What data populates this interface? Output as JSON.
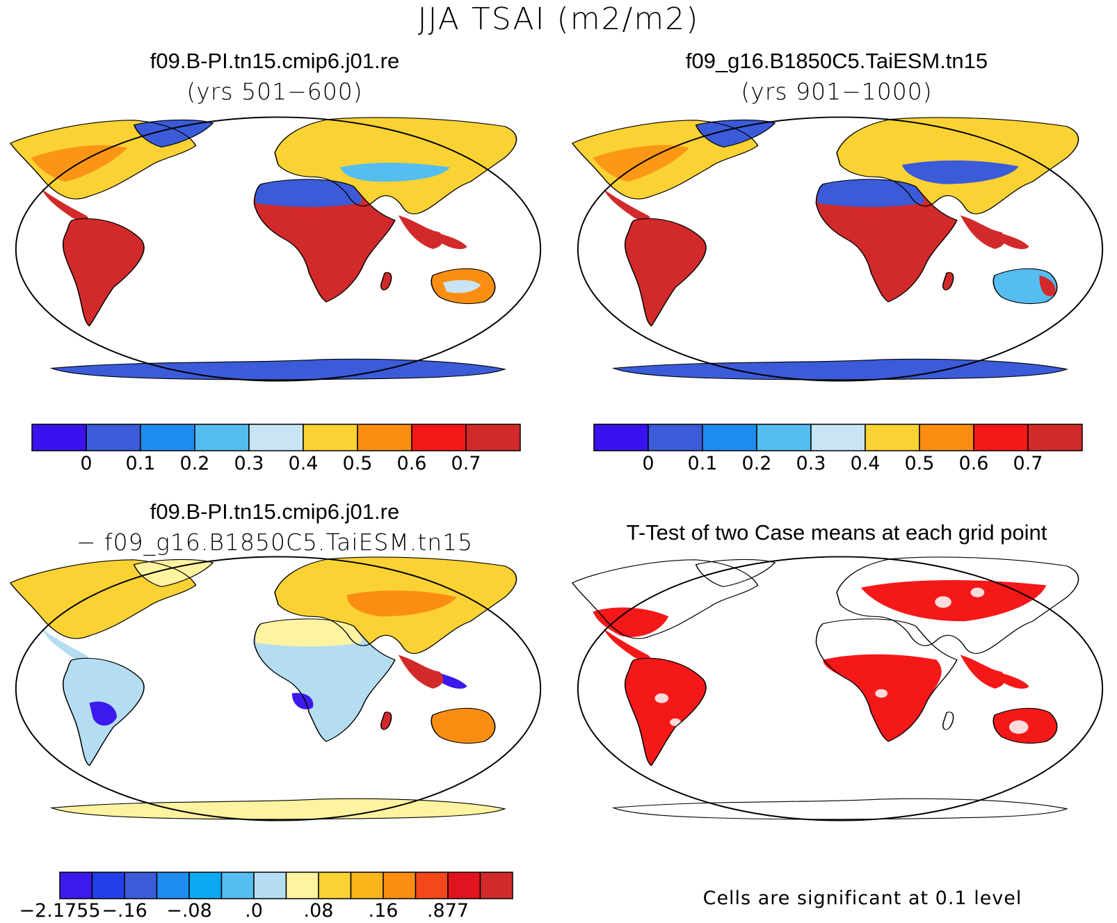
{
  "title": "JJA TSAI (m2/m2)",
  "panels": [
    {
      "title": "f09.B-PI.tn15.cmip6.j01.re",
      "subtitle": "(yrs 501−600)"
    },
    {
      "title": "f09_g16.B1850C5.TaiESM.tn15",
      "subtitle": "(yrs 901−1000)"
    },
    {
      "title": "f09.B-PI.tn15.cmip6.j01.re",
      "subtitle": "− f09_g16.B1850C5.TaiESM.tn15"
    },
    {
      "title": "T-Test of two Case means at each grid point",
      "note": "Cells are significant at 0.1 level"
    }
  ],
  "colorbar_abs": {
    "colors": [
      "#3b12ef",
      "#3b5bd9",
      "#1f8cf2",
      "#55bdf0",
      "#c8e4f5",
      "#fbd234",
      "#fb8e12",
      "#f51818",
      "#d22a2a"
    ],
    "labels": [
      "0",
      "0.1",
      "0.2",
      "0.3",
      "0.4",
      "0.5",
      "0.6",
      "0.7"
    ]
  },
  "colorbar_diff": {
    "colors": [
      "#3c1aee",
      "#2240ea",
      "#3b5bd9",
      "#1f8cf2",
      "#0aaaf2",
      "#55bdf0",
      "#b4ddf2",
      "#fdf3a0",
      "#fbd234",
      "#fbb41a",
      "#fb8e12",
      "#f5471c",
      "#e0141e",
      "#d22a2a"
    ],
    "labels": [
      "−2.1755",
      "−.16",
      "−.08",
      ".0",
      ".08",
      ".16",
      ".877"
    ]
  },
  "chart_data": [
    {
      "type": "heatmap",
      "panel": "case1",
      "variable": "TSAI",
      "units": "m2/m2",
      "season": "JJA",
      "contour_levels": [
        0,
        0.1,
        0.2,
        0.3,
        0.4,
        0.5,
        0.6,
        0.7
      ]
    },
    {
      "type": "heatmap",
      "panel": "case2",
      "variable": "TSAI",
      "units": "m2/m2",
      "season": "JJA",
      "contour_levels": [
        0,
        0.1,
        0.2,
        0.3,
        0.4,
        0.5,
        0.6,
        0.7
      ]
    },
    {
      "type": "heatmap",
      "panel": "difference",
      "variable": "TSAI",
      "units": "m2/m2",
      "colorbar_labels": [
        -2.1755,
        -0.16,
        -0.08,
        0.0,
        0.08,
        0.16,
        0.877
      ]
    },
    {
      "type": "heatmap",
      "panel": "t-test",
      "significance_level": 0.1
    }
  ]
}
